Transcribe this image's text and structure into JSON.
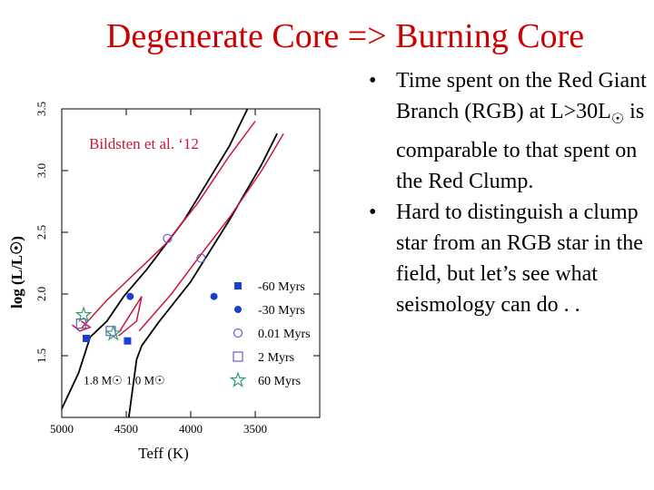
{
  "slide": {
    "title": "Degenerate Core => Burning Core",
    "bullets": [
      {
        "text": "Time spent on the Red Giant Branch (RGB) at L>30L",
        "suffix": " is comparable to that spent on the Red Clump."
      },
      {
        "text": "Hard to distinguish a clump star from an RGB star in the field, but let’s see what seismology can do . ."
      }
    ]
  },
  "chart_data": {
    "type": "line",
    "annotation": "Bildsten et al. ‘12",
    "xlabel": "Teff (K)",
    "ylabel": "log (L/L☉)",
    "x_reversed": true,
    "xlim": [
      5000,
      3000
    ],
    "ylim": [
      1.0,
      3.5
    ],
    "x_ticks": [
      5000,
      4500,
      4000,
      3500
    ],
    "y_ticks": [
      1.5,
      2.0,
      2.5,
      3.0,
      3.5
    ],
    "series": [
      {
        "name": "1.8 M☉",
        "color": "#000000",
        "points": [
          [
            5000,
            1.07
          ],
          [
            4870,
            1.36
          ],
          [
            4780,
            1.65
          ],
          [
            4650,
            1.78
          ],
          [
            4520,
            1.98
          ],
          [
            4340,
            2.2
          ],
          [
            4050,
            2.6
          ],
          [
            3700,
            3.2
          ],
          [
            3560,
            3.5
          ]
        ]
      },
      {
        "name": "1.0 M☉",
        "color": "#000000",
        "points": [
          [
            4480,
            1.0
          ],
          [
            4420,
            1.47
          ],
          [
            4380,
            1.58
          ],
          [
            4250,
            1.77
          ],
          [
            4000,
            2.1
          ],
          [
            3700,
            2.6
          ],
          [
            3450,
            3.05
          ],
          [
            3330,
            3.3
          ]
        ]
      },
      {
        "name": "",
        "color": "#c8193c",
        "points": [
          [
            4850,
            1.72
          ],
          [
            4650,
            1.95
          ],
          [
            4450,
            2.15
          ],
          [
            4200,
            2.4
          ],
          [
            3950,
            2.73
          ],
          [
            3700,
            3.12
          ],
          [
            3500,
            3.4
          ]
        ]
      },
      {
        "name": "",
        "color": "#c8193c",
        "points": [
          [
            4400,
            1.7
          ],
          [
            4150,
            2.0
          ],
          [
            3950,
            2.28
          ],
          [
            3700,
            2.62
          ],
          [
            3450,
            3.0
          ],
          [
            3280,
            3.3
          ]
        ]
      },
      {
        "name": "",
        "color": "#c8193c",
        "points": [
          [
            4850,
            1.78
          ],
          [
            4780,
            1.73
          ],
          [
            4860,
            1.7
          ],
          [
            4920,
            1.75
          ]
        ]
      },
      {
        "name": "",
        "color": "#c8193c",
        "points": [
          [
            4550,
            1.7
          ],
          [
            4380,
            1.98
          ],
          [
            4420,
            1.78
          ],
          [
            4560,
            1.66
          ]
        ]
      }
    ],
    "markers": [
      {
        "label": "-60 Myrs",
        "symbol": "filled-square",
        "points": [
          [
            4810,
            1.64
          ],
          [
            4490,
            1.62
          ]
        ]
      },
      {
        "label": "-30 Myrs",
        "symbol": "filled-circle",
        "points": [
          [
            4470,
            1.98
          ],
          [
            3820,
            1.98
          ]
        ]
      },
      {
        "label": "0.01 Myrs",
        "symbol": "open-circle",
        "points": [
          [
            4180,
            2.45
          ],
          [
            3920,
            2.29
          ]
        ]
      },
      {
        "label": "2 Myrs",
        "symbol": "open-square",
        "points": [
          [
            4850,
            1.76
          ],
          [
            4620,
            1.7
          ]
        ]
      },
      {
        "label": "60 Myrs",
        "symbol": "open-star",
        "points": [
          [
            4830,
            1.83
          ],
          [
            4600,
            1.68
          ]
        ]
      }
    ],
    "curve_labels": [
      {
        "text": "1.8 M☉",
        "x": 4830,
        "y": 1.27
      },
      {
        "text": "1.0 M☉",
        "x": 4500,
        "y": 1.27
      }
    ],
    "colors": {
      "marker": "#1a3fd0",
      "star": "#2e9e6e",
      "red_track": "#c8193c"
    }
  }
}
